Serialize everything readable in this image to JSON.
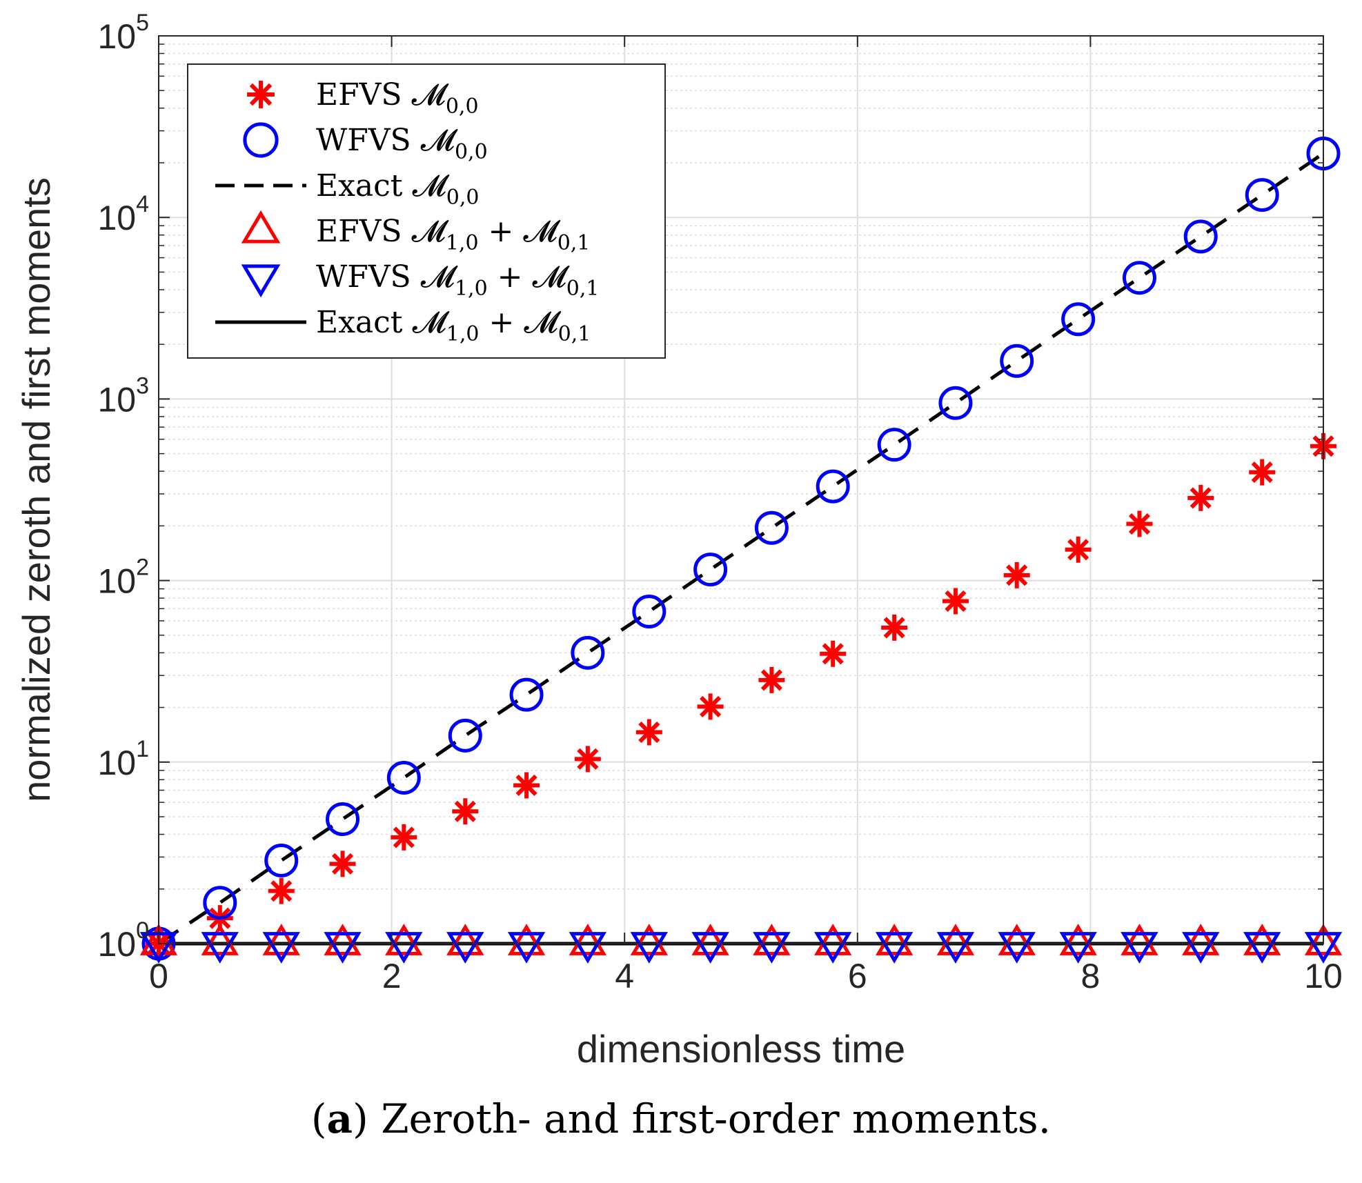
{
  "chart_data": {
    "type": "scatter",
    "xlabel": "dimensionless time",
    "ylabel": "normalized zeroth and first moments",
    "xlim": [
      0,
      10
    ],
    "ylim": [
      1,
      100000
    ],
    "yscale": "log",
    "grid": true,
    "minor_grid": true,
    "xticks": [
      "0",
      "2",
      "4",
      "6",
      "8",
      "10"
    ],
    "yticks": [
      {
        "base": "10",
        "exp": "0"
      },
      {
        "base": "10",
        "exp": "1"
      },
      {
        "base": "10",
        "exp": "2"
      },
      {
        "base": "10",
        "exp": "3"
      },
      {
        "base": "10",
        "exp": "4"
      },
      {
        "base": "10",
        "exp": "5"
      }
    ],
    "legend_position": "top-left",
    "x": [
      0,
      0.526,
      1.053,
      1.579,
      2.105,
      2.632,
      3.158,
      3.684,
      4.211,
      4.737,
      5.263,
      5.789,
      6.316,
      6.842,
      7.368,
      7.895,
      8.421,
      8.947,
      9.474,
      10
    ],
    "series": [
      {
        "name": "EFVS M0,0",
        "legend_label": "EFVS 𝓜",
        "legend_sub": "0,0",
        "marker": "asterisk",
        "color": "#ff0000",
        "values": [
          1.0,
          1.38,
          1.95,
          2.75,
          3.85,
          5.35,
          7.45,
          10.4,
          14.6,
          20.2,
          28.3,
          39.5,
          55,
          77,
          107,
          148,
          205,
          285,
          395,
          550
        ]
      },
      {
        "name": "WFVS M0,0",
        "legend_label": "WFVS 𝓜",
        "legend_sub": "0,0",
        "marker": "circle",
        "color": "#0000ff",
        "values": [
          1.0,
          1.68,
          2.87,
          4.85,
          8.2,
          14.0,
          23.5,
          40,
          67.5,
          115,
          195,
          330,
          560,
          950,
          1620,
          2750,
          4650,
          7850,
          13300,
          22500
        ]
      },
      {
        "name": "Exact M0,0",
        "legend_label": "Exact 𝓜",
        "legend_sub": "0,0",
        "marker": "none",
        "line": "dashed",
        "color": "#000000",
        "values": [
          1.0,
          1.68,
          2.87,
          4.85,
          8.2,
          14.0,
          23.5,
          40,
          67.5,
          115,
          195,
          330,
          560,
          950,
          1620,
          2750,
          4650,
          7850,
          13300,
          22500
        ]
      },
      {
        "name": "EFVS M1,0 + M0,1",
        "legend_label": "EFVS 𝓜",
        "legend_sub": "1,0",
        "legend_mid": " + 𝓜",
        "legend_sub2": "0,1",
        "marker": "triangle-up",
        "color": "#ff0000",
        "values": [
          1,
          1,
          1,
          1,
          1,
          1,
          1,
          1,
          1,
          1,
          1,
          1,
          1,
          1,
          1,
          1,
          1,
          1,
          1,
          1
        ]
      },
      {
        "name": "WFVS M1,0 + M0,1",
        "legend_label": "WFVS 𝓜",
        "legend_sub": "1,0",
        "legend_mid": " + 𝓜",
        "legend_sub2": "0,1",
        "marker": "triangle-down",
        "color": "#0000ff",
        "values": [
          1,
          1,
          1,
          1,
          1,
          1,
          1,
          1,
          1,
          1,
          1,
          1,
          1,
          1,
          1,
          1,
          1,
          1,
          1,
          1
        ]
      },
      {
        "name": "Exact M1,0 + M0,1",
        "legend_label": "Exact 𝓜",
        "legend_sub": "1,0",
        "legend_mid": " + 𝓜",
        "legend_sub2": "0,1",
        "marker": "none",
        "line": "solid",
        "color": "#000000",
        "values": [
          1,
          1,
          1,
          1,
          1,
          1,
          1,
          1,
          1,
          1,
          1,
          1,
          1,
          1,
          1,
          1,
          1,
          1,
          1,
          1
        ]
      }
    ]
  },
  "caption": {
    "label": "(a)",
    "label_letter": "a",
    "text": "Zeroth- and first-order moments."
  }
}
